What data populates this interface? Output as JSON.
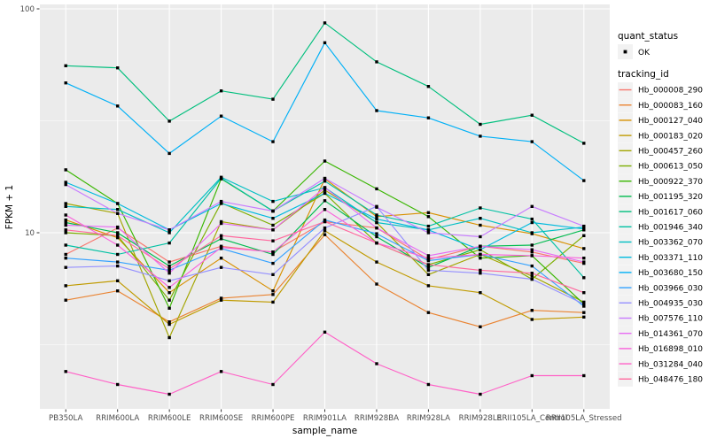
{
  "chart_data": {
    "type": "line",
    "title": "",
    "xlabel": "sample_name",
    "ylabel": "FPKM + 1",
    "y_scale": "log10",
    "ylim": [
      1.6,
      105
    ],
    "y_major_ticks": [
      10,
      100
    ],
    "y_tick_labels": [
      "10",
      "100"
    ],
    "y_minor_gridlines": [
      3.162,
      31.623
    ],
    "grid": "on",
    "legend_position": "right",
    "categories": [
      "PB350LA",
      "RRIM600LA",
      "RRIM600LE",
      "RRIM600SE",
      "RRIM600PE",
      "RRIM901LA",
      "RRIM928BA",
      "RRIM928LA",
      "RRIM928LE",
      "RRII105LA_Control",
      "RRII105LA_Stressed"
    ],
    "point_shape": "filled-square",
    "point_color": "#000000",
    "series": [
      {
        "tracking_id": "Hb_000008_290",
        "color": "#F8766D",
        "values": [
          8.0,
          10.5,
          7.4,
          8.7,
          8.2,
          11.2,
          10.5,
          7.6,
          8.7,
          8.2,
          7.3
        ]
      },
      {
        "tracking_id": "Hb_000083_160",
        "color": "#EA8331",
        "values": [
          5.0,
          5.5,
          4.0,
          5.1,
          5.3,
          9.8,
          5.9,
          4.4,
          3.8,
          4.5,
          4.4
        ]
      },
      {
        "tracking_id": "Hb_000127_040",
        "color": "#D89000",
        "values": [
          11.4,
          9.5,
          5.4,
          7.7,
          5.5,
          17.4,
          11.8,
          12.3,
          10.8,
          9.9,
          8.5
        ]
      },
      {
        "tracking_id": "Hb_000183_020",
        "color": "#C09B00",
        "values": [
          5.8,
          6.1,
          3.9,
          5.0,
          4.9,
          10.2,
          7.4,
          5.8,
          5.4,
          4.1,
          4.2
        ]
      },
      {
        "tracking_id": "Hb_000457_260",
        "color": "#A3A500",
        "values": [
          13.5,
          12.2,
          3.4,
          11.2,
          10.3,
          15.5,
          11.1,
          6.5,
          8.0,
          6.4,
          4.9
        ]
      },
      {
        "tracking_id": "Hb_000613_050",
        "color": "#7CAE00",
        "values": [
          10.0,
          9.7,
          5.0,
          13.6,
          10.8,
          15.0,
          9.0,
          7.2,
          8.4,
          6.2,
          9.7
        ]
      },
      {
        "tracking_id": "Hb_000922_370",
        "color": "#39B600",
        "values": [
          19.1,
          13.5,
          4.6,
          17.4,
          12.5,
          20.9,
          15.7,
          11.8,
          7.7,
          7.9,
          4.8
        ]
      },
      {
        "tracking_id": "Hb_001195_320",
        "color": "#00BB4E",
        "values": [
          11.1,
          10.0,
          7.1,
          9.4,
          8.0,
          13.9,
          9.6,
          7.0,
          8.7,
          8.8,
          10.3
        ]
      },
      {
        "tracking_id": "Hb_001617_060",
        "color": "#00BF7D",
        "values": [
          55.7,
          54.5,
          31.5,
          43.0,
          39.5,
          86.5,
          58.0,
          45.0,
          30.5,
          33.5,
          25.1
        ]
      },
      {
        "tracking_id": "Hb_001946_340",
        "color": "#00C1A3",
        "values": [
          8.8,
          8.0,
          9.0,
          17.5,
          12.5,
          17.0,
          12.0,
          10.7,
          12.9,
          11.5,
          6.3
        ]
      },
      {
        "tracking_id": "Hb_003362_070",
        "color": "#00BFC4",
        "values": [
          13.1,
          12.7,
          10.0,
          17.7,
          13.8,
          15.9,
          11.1,
          10.3,
          11.6,
          10.0,
          10.6
        ]
      },
      {
        "tracking_id": "Hb_003371_110",
        "color": "#00BADE",
        "values": [
          16.8,
          13.5,
          10.3,
          13.5,
          11.6,
          15.0,
          11.5,
          10.3,
          8.4,
          11.1,
          10.4
        ]
      },
      {
        "tracking_id": "Hb_003680_150",
        "color": "#00B0F6",
        "values": [
          46.7,
          36.8,
          22.6,
          33.2,
          25.5,
          70.6,
          35.1,
          32.6,
          27.0,
          25.5,
          17.1
        ]
      },
      {
        "tracking_id": "Hb_003966_030",
        "color": "#35A2FF",
        "values": [
          7.7,
          7.4,
          6.8,
          8.5,
          7.3,
          11.4,
          9.9,
          7.5,
          8.0,
          7.1,
          4.7
        ]
      },
      {
        "tracking_id": "Hb_004935_030",
        "color": "#9590FF",
        "values": [
          7.0,
          7.1,
          6.1,
          7.0,
          6.5,
          10.5,
          13.1,
          6.8,
          6.6,
          6.2,
          4.8
        ]
      },
      {
        "tracking_id": "Hb_007576_110",
        "color": "#C77CFF",
        "values": [
          16.4,
          12.2,
          10.3,
          13.8,
          12.5,
          17.5,
          13.0,
          10.0,
          9.6,
          13.1,
          10.7
        ]
      },
      {
        "tracking_id": "Hb_014361_070",
        "color": "#E76BF3",
        "values": [
          10.8,
          10.6,
          6.6,
          11.0,
          10.3,
          15.9,
          10.5,
          7.9,
          8.7,
          8.4,
          7.4
        ]
      },
      {
        "tracking_id": "Hb_016898_010",
        "color": "#FA62DB",
        "values": [
          12.0,
          8.8,
          5.7,
          8.6,
          8.2,
          12.7,
          9.0,
          7.7,
          8.0,
          7.9,
          7.7
        ]
      },
      {
        "tracking_id": "Hb_031284_040",
        "color": "#FF61C7",
        "values": [
          2.4,
          2.1,
          1.9,
          2.4,
          2.1,
          3.6,
          2.6,
          2.1,
          1.9,
          2.3,
          2.3
        ]
      },
      {
        "tracking_id": "Hb_048476_180",
        "color": "#FF689E",
        "values": [
          10.3,
          9.7,
          6.9,
          9.7,
          9.2,
          11.2,
          9.0,
          7.2,
          6.8,
          6.6,
          5.4
        ]
      }
    ],
    "legend": {
      "quant_status_title": "quant_status",
      "quant_status_items": [
        "OK"
      ],
      "tracking_id_title": "tracking_id"
    }
  },
  "theme": {
    "panel_bg": "#EBEBEB",
    "grid_color": "#FFFFFF",
    "tick_color": "#333333",
    "tick_label_color": "#4D4D4D",
    "axis_title_color": "#000000",
    "legend_key_bg": "#F2F2F2",
    "text_color": "#000000"
  }
}
